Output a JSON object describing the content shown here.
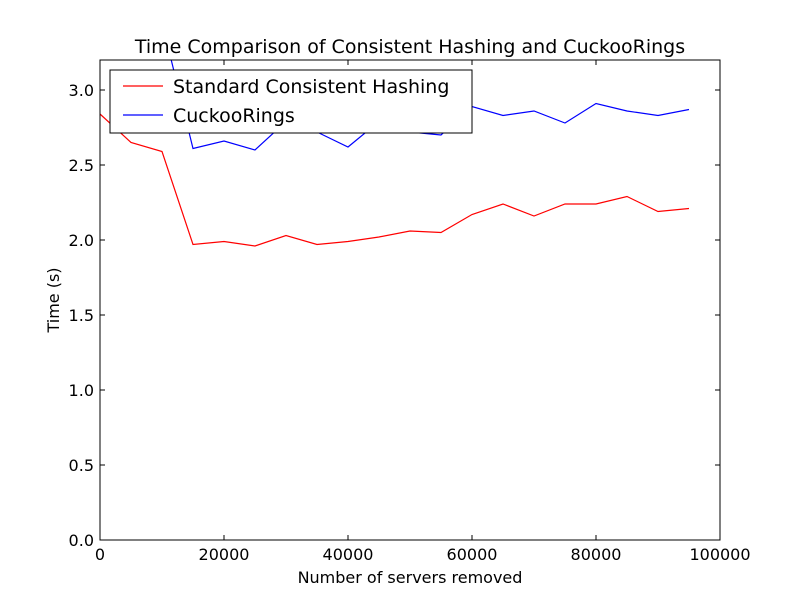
{
  "chart_data": {
    "type": "line",
    "title": "Time Comparison of Consistent Hashing and CuckooRings",
    "xlabel": "Number of servers removed",
    "ylabel": "Time (s)",
    "xlim": [
      0,
      100000
    ],
    "ylim": [
      0.0,
      3.2
    ],
    "xticks": [
      0,
      20000,
      40000,
      60000,
      80000,
      100000
    ],
    "xtick_labels": [
      "0",
      "20000",
      "40000",
      "60000",
      "80000",
      "100000"
    ],
    "yticks": [
      0.0,
      0.5,
      1.0,
      1.5,
      2.0,
      2.5,
      3.0
    ],
    "ytick_labels": [
      "0.0",
      "0.5",
      "1.0",
      "1.5",
      "2.0",
      "2.5",
      "3.0"
    ],
    "grid": false,
    "legend": "top-left",
    "series": [
      {
        "name": "Standard Consistent Hashing",
        "color": "#ff0000",
        "x": [
          0,
          5000,
          10000,
          15000,
          20000,
          25000,
          30000,
          35000,
          40000,
          45000,
          50000,
          55000,
          60000,
          65000,
          70000,
          75000,
          80000,
          85000,
          90000,
          95000
        ],
        "y": [
          2.84,
          2.65,
          2.59,
          1.97,
          1.99,
          1.96,
          2.03,
          1.97,
          1.99,
          2.02,
          2.06,
          2.05,
          2.17,
          2.24,
          2.16,
          2.24,
          2.24,
          2.29,
          2.19,
          2.21
        ]
      },
      {
        "name": "CuckooRings",
        "color": "#0000ff",
        "x": [
          10000,
          15000,
          20000,
          25000,
          30000,
          35000,
          40000,
          45000,
          50000,
          55000,
          60000,
          65000,
          70000,
          75000,
          80000,
          85000,
          90000,
          95000
        ],
        "y": [
          3.45,
          2.61,
          2.66,
          2.6,
          2.79,
          2.72,
          2.62,
          2.79,
          2.72,
          2.7,
          2.89,
          2.83,
          2.86,
          2.78,
          2.91,
          2.86,
          2.83,
          2.87
        ]
      }
    ]
  }
}
